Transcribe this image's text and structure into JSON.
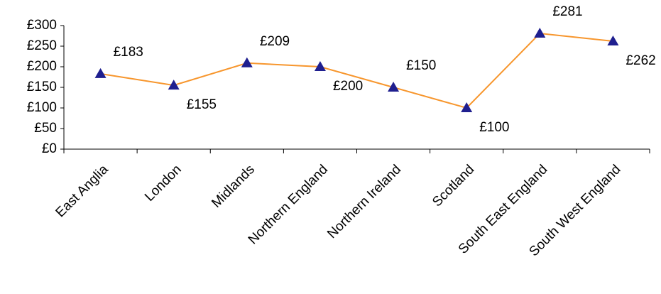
{
  "chart_data": {
    "type": "line",
    "categories": [
      "East Anglia",
      "London",
      "Midlands",
      "Northern England",
      "Northern Ireland",
      "Scotland",
      "South East England",
      "South West England"
    ],
    "series": [
      {
        "color": "#f7962d",
        "marker_color": "#1f1f8f",
        "values": [
          183,
          155,
          209,
          200,
          150,
          100,
          281,
          262
        ],
        "value_labels": [
          "£183",
          "£155",
          "£209",
          "£200",
          "£150",
          "£100",
          "£281",
          "£262"
        ]
      }
    ],
    "ylim": [
      0,
      300
    ],
    "yticks": [
      {
        "value": 0,
        "label": "£0"
      },
      {
        "value": 50,
        "label": "£50"
      },
      {
        "value": 100,
        "label": "£100"
      },
      {
        "value": 150,
        "label": "£150"
      },
      {
        "value": 200,
        "label": "£200"
      },
      {
        "value": 250,
        "label": "£250"
      },
      {
        "value": 300,
        "label": "£300"
      }
    ],
    "grid": false
  }
}
